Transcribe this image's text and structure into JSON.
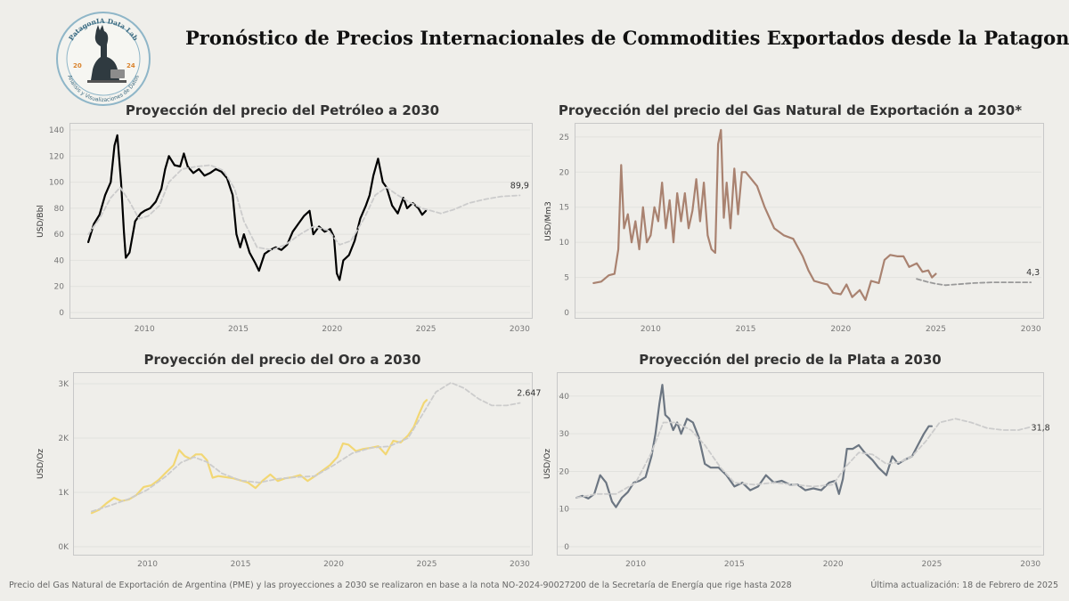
{
  "header": {
    "title": "Pronóstico de Precios Internacionales de Commodities Exportados desde la Patagonia",
    "logo_top_text": "PatagonIA Data Lab",
    "logo_year_left": "20",
    "logo_year_right": "24",
    "logo_bottom_text": "Análisis y Visualizaciones de Datos"
  },
  "footer": {
    "note": "Precio del Gas Natural de Exportación de Argentina (PME) y las proyecciones a 2030 se realizaron en base a la nota NO-2024-90027200 de la Secretaría de Energía que rige hasta 2028",
    "updated": "Última actualización: 18 de Febrero de 2025"
  },
  "chart_data": [
    {
      "type": "line",
      "title": "Proyección del precio del Petróleo a 2030",
      "ylabel": "USD/Bbl",
      "xlabel": "",
      "xlim": [
        2006,
        2030.6
      ],
      "ylim": [
        0,
        140
      ],
      "yticks": [
        0,
        20,
        40,
        60,
        80,
        100,
        120,
        140
      ],
      "ytick_labels": [
        "0",
        "20",
        "40",
        "60",
        "80",
        "100",
        "120",
        "140"
      ],
      "xticks": [
        2010,
        2015,
        2020,
        2025,
        2030
      ],
      "grid": true,
      "end_label": "89,9",
      "series": [
        {
          "role": "actual",
          "color": "#000000",
          "x": [
            2007.0,
            2007.3,
            2007.6,
            2007.9,
            2008.2,
            2008.4,
            2008.55,
            2008.75,
            2008.9,
            2009.0,
            2009.2,
            2009.5,
            2009.8,
            2010.0,
            2010.3,
            2010.6,
            2010.9,
            2011.1,
            2011.3,
            2011.6,
            2011.9,
            2012.1,
            2012.3,
            2012.6,
            2012.9,
            2013.2,
            2013.5,
            2013.8,
            2014.1,
            2014.4,
            2014.7,
            2014.9,
            2015.1,
            2015.3,
            2015.6,
            2015.9,
            2016.1,
            2016.4,
            2016.7,
            2017.0,
            2017.3,
            2017.6,
            2017.9,
            2018.2,
            2018.5,
            2018.8,
            2019.0,
            2019.3,
            2019.6,
            2019.9,
            2020.1,
            2020.25,
            2020.4,
            2020.6,
            2020.9,
            2021.2,
            2021.5,
            2021.8,
            2022.0,
            2022.2,
            2022.45,
            2022.7,
            2022.9,
            2023.2,
            2023.5,
            2023.8,
            2024.0,
            2024.3,
            2024.6,
            2024.8,
            2025.0
          ],
          "y": [
            54,
            68,
            75,
            90,
            100,
            128,
            136,
            100,
            62,
            42,
            46,
            70,
            76,
            78,
            80,
            85,
            95,
            110,
            120,
            113,
            112,
            122,
            112,
            107,
            110,
            105,
            107,
            110,
            108,
            103,
            90,
            60,
            50,
            60,
            46,
            38,
            32,
            45,
            48,
            50,
            48,
            52,
            62,
            68,
            74,
            78,
            60,
            66,
            62,
            64,
            58,
            30,
            25,
            40,
            44,
            55,
            72,
            82,
            90,
            105,
            118,
            100,
            96,
            82,
            76,
            88,
            80,
            84,
            80,
            75,
            78
          ]
        },
        {
          "role": "trend_projection",
          "color": "#cccccc",
          "dashed": true,
          "x": [
            2007.0,
            2007.6,
            2008.2,
            2008.7,
            2009.2,
            2009.7,
            2010.2,
            2010.8,
            2011.3,
            2012.0,
            2012.8,
            2013.5,
            2014.2,
            2014.8,
            2015.3,
            2016.0,
            2016.8,
            2017.5,
            2018.3,
            2019.0,
            2019.8,
            2020.4,
            2021.0,
            2021.7,
            2022.3,
            2022.9,
            2023.5,
            2024.2,
            2024.8,
            2025.3,
            2025.8,
            2026.5,
            2027.3,
            2028.2,
            2029.0,
            2030.0
          ],
          "y": [
            60,
            72,
            88,
            96,
            85,
            72,
            74,
            82,
            100,
            110,
            112,
            113,
            109,
            95,
            70,
            50,
            48,
            52,
            60,
            66,
            63,
            52,
            55,
            72,
            90,
            96,
            90,
            84,
            80,
            78,
            76,
            79,
            84,
            87,
            89,
            89.9
          ]
        }
      ]
    },
    {
      "type": "line",
      "title": "Proyección del precio del Gas Natural de Exportación a 2030*",
      "ylabel": "USD/Mm3",
      "xlabel": "",
      "xlim": [
        2006,
        2030.6
      ],
      "ylim": [
        0,
        26
      ],
      "yticks": [
        0,
        5,
        10,
        15,
        20,
        25
      ],
      "ytick_labels": [
        "0",
        "5",
        "10",
        "15",
        "20",
        "25"
      ],
      "xticks": [
        2010,
        2015,
        2020,
        2025,
        2030
      ],
      "grid": true,
      "end_label": "4,3",
      "series": [
        {
          "role": "actual",
          "color": "#a98270",
          "x": [
            2007.0,
            2007.4,
            2007.8,
            2008.1,
            2008.3,
            2008.45,
            2008.6,
            2008.8,
            2009.0,
            2009.2,
            2009.4,
            2009.6,
            2009.8,
            2010.0,
            2010.2,
            2010.4,
            2010.6,
            2010.8,
            2011.0,
            2011.2,
            2011.4,
            2011.6,
            2011.8,
            2012.0,
            2012.2,
            2012.4,
            2012.6,
            2012.8,
            2013.0,
            2013.2,
            2013.4,
            2013.55,
            2013.7,
            2013.85,
            2014.0,
            2014.2,
            2014.4,
            2014.6,
            2014.8,
            2015.0,
            2015.3,
            2015.6,
            2016.0,
            2016.5,
            2017.0,
            2017.5,
            2018.0,
            2018.3,
            2018.6,
            2019.0,
            2019.3,
            2019.6,
            2020.0,
            2020.3,
            2020.6,
            2021.0,
            2021.3,
            2021.6,
            2022.0,
            2022.3,
            2022.6,
            2023.0,
            2023.3,
            2023.6,
            2024.0,
            2024.3,
            2024.6,
            2024.8,
            2025.0
          ],
          "y": [
            4.2,
            4.4,
            5.3,
            5.5,
            9,
            21,
            12,
            14,
            10,
            13,
            9,
            15,
            10,
            11,
            15,
            13,
            18.5,
            12,
            16,
            10,
            17,
            13,
            17,
            12,
            14.5,
            19,
            13,
            18.5,
            11,
            9,
            8.5,
            24,
            26,
            13.5,
            18.5,
            12,
            20.5,
            14,
            20,
            20,
            19,
            18,
            15,
            12,
            11,
            10.5,
            8,
            6,
            4.5,
            4.2,
            4.0,
            2.8,
            2.6,
            4.0,
            2.2,
            3.2,
            1.8,
            4.5,
            4.2,
            7.5,
            8.2,
            8.0,
            8.0,
            6.5,
            7.0,
            5.8,
            6.0,
            5.0,
            5.5
          ]
        },
        {
          "role": "trend_projection",
          "color": "#999999",
          "dashed": true,
          "x": [
            2024.0,
            2024.5,
            2025.0,
            2025.5,
            2026.0,
            2027.0,
            2028.0,
            2029.0,
            2030.0
          ],
          "y": [
            4.8,
            4.4,
            4.1,
            3.9,
            4.0,
            4.2,
            4.3,
            4.3,
            4.3
          ]
        }
      ]
    },
    {
      "type": "line",
      "title": "Proyección del precio del Oro a 2030",
      "ylabel": "USD/Oz",
      "xlabel": "",
      "xlim": [
        2006,
        2030.6
      ],
      "ylim": [
        0,
        3050
      ],
      "yticks": [
        0,
        1000,
        2000,
        3000
      ],
      "ytick_labels": [
        "0K",
        "1K",
        "2K",
        "3K"
      ],
      "xticks": [
        2010,
        2015,
        2020,
        2025,
        2030
      ],
      "grid": true,
      "end_label": "2.647",
      "series": [
        {
          "role": "actual",
          "color": "#f2d774",
          "x": [
            2007.0,
            2007.4,
            2007.8,
            2008.2,
            2008.6,
            2009.0,
            2009.4,
            2009.8,
            2010.2,
            2010.6,
            2011.0,
            2011.4,
            2011.7,
            2012.0,
            2012.3,
            2012.6,
            2012.9,
            2013.2,
            2013.5,
            2013.8,
            2014.2,
            2014.6,
            2015.0,
            2015.4,
            2015.8,
            2016.2,
            2016.6,
            2017.0,
            2017.4,
            2017.8,
            2018.2,
            2018.6,
            2019.0,
            2019.4,
            2019.8,
            2020.2,
            2020.5,
            2020.8,
            2021.2,
            2021.6,
            2022.0,
            2022.4,
            2022.8,
            2023.2,
            2023.6,
            2024.0,
            2024.3,
            2024.6,
            2024.85,
            2025.0
          ],
          "y": [
            620,
            680,
            800,
            900,
            840,
            870,
            950,
            1100,
            1130,
            1230,
            1370,
            1500,
            1780,
            1670,
            1620,
            1700,
            1700,
            1590,
            1270,
            1300,
            1280,
            1260,
            1220,
            1180,
            1080,
            1220,
            1330,
            1210,
            1260,
            1280,
            1320,
            1210,
            1300,
            1400,
            1500,
            1650,
            1900,
            1880,
            1760,
            1800,
            1820,
            1850,
            1700,
            1950,
            1920,
            2050,
            2200,
            2450,
            2650,
            2700
          ]
        },
        {
          "role": "trend_projection",
          "color": "#cccccc",
          "dashed": true,
          "x": [
            2007.0,
            2008.0,
            2009.0,
            2010.0,
            2011.0,
            2011.8,
            2012.5,
            2013.2,
            2014.0,
            2015.0,
            2016.0,
            2017.0,
            2018.0,
            2019.0,
            2020.0,
            2021.0,
            2022.0,
            2023.0,
            2024.0,
            2024.8,
            2025.5,
            2026.3,
            2027.0,
            2027.8,
            2028.5,
            2029.3,
            2030.0
          ],
          "y": [
            650,
            760,
            880,
            1050,
            1300,
            1550,
            1650,
            1560,
            1350,
            1220,
            1180,
            1250,
            1280,
            1300,
            1500,
            1720,
            1820,
            1850,
            2000,
            2450,
            2850,
            3020,
            2920,
            2720,
            2600,
            2600,
            2647
          ]
        }
      ]
    },
    {
      "type": "line",
      "title": "Proyección del precio de la Plata a 2030",
      "ylabel": "USD/Oz",
      "xlabel": "",
      "xlim": [
        2006,
        2030.6
      ],
      "ylim": [
        0,
        44
      ],
      "yticks": [
        0,
        10,
        20,
        30,
        40
      ],
      "ytick_labels": [
        "0",
        "10",
        "20",
        "30",
        "40"
      ],
      "xticks": [
        2010,
        2015,
        2020,
        2025,
        2030
      ],
      "grid": true,
      "end_label": "31,8",
      "series": [
        {
          "role": "actual",
          "color": "#6c7682",
          "x": [
            2007.0,
            2007.3,
            2007.6,
            2007.9,
            2008.2,
            2008.5,
            2008.8,
            2009.0,
            2009.3,
            2009.6,
            2009.9,
            2010.2,
            2010.5,
            2010.8,
            2011.0,
            2011.2,
            2011.35,
            2011.5,
            2011.7,
            2011.9,
            2012.1,
            2012.3,
            2012.6,
            2012.9,
            2013.2,
            2013.5,
            2013.8,
            2014.2,
            2014.6,
            2015.0,
            2015.4,
            2015.8,
            2016.2,
            2016.6,
            2017.0,
            2017.4,
            2017.8,
            2018.2,
            2018.6,
            2019.0,
            2019.4,
            2019.8,
            2020.1,
            2020.3,
            2020.5,
            2020.7,
            2021.0,
            2021.3,
            2021.6,
            2022.0,
            2022.3,
            2022.7,
            2023.0,
            2023.3,
            2023.6,
            2024.0,
            2024.3,
            2024.6,
            2024.85,
            2025.0
          ],
          "y": [
            13,
            13.5,
            12.8,
            14,
            19,
            17,
            12,
            10.5,
            13,
            14.5,
            17,
            17.5,
            18.5,
            24,
            30,
            38,
            43,
            35,
            34,
            31,
            33,
            30,
            34,
            33,
            29,
            22,
            21,
            21,
            19,
            16,
            17,
            15,
            16,
            19,
            17,
            17.5,
            16.5,
            16.5,
            15,
            15.5,
            15,
            17,
            17.5,
            14,
            18,
            26,
            26,
            27,
            25,
            23,
            21,
            19,
            24,
            22,
            23,
            24,
            27,
            30,
            32,
            32
          ]
        },
        {
          "role": "trend_projection",
          "color": "#cccccc",
          "dashed": true,
          "x": [
            2007.0,
            2008.0,
            2009.0,
            2010.0,
            2010.8,
            2011.4,
            2012.0,
            2012.8,
            2013.5,
            2014.3,
            2015.0,
            2016.0,
            2017.0,
            2018.0,
            2019.0,
            2020.0,
            2020.6,
            2021.3,
            2022.0,
            2022.7,
            2023.4,
            2024.0,
            2024.7,
            2025.4,
            2026.2,
            2027.0,
            2027.8,
            2028.6,
            2029.4,
            2030.0
          ],
          "y": [
            13,
            14,
            14,
            17,
            25,
            33,
            33,
            31,
            27,
            21,
            17,
            16.5,
            17,
            16.5,
            16,
            16.5,
            21,
            25,
            24.5,
            22,
            22.5,
            24,
            28,
            33,
            34,
            33,
            31.5,
            31,
            31,
            31.8
          ]
        }
      ]
    }
  ]
}
